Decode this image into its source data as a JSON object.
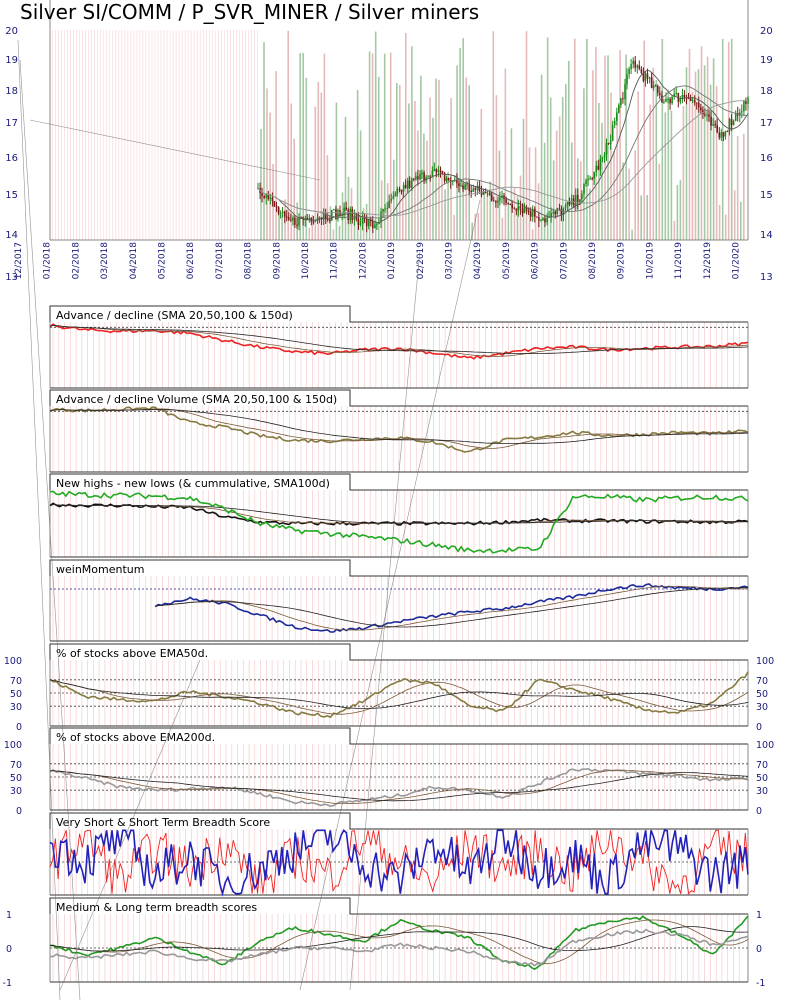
{
  "title": "Silver SI/COMM / P_SVR_MINER / Silver miners",
  "colors": {
    "price_up": "#1a8a1a",
    "price_down": "#7a1a1a",
    "ad": "#ee2222",
    "adv": "#857a40",
    "nhnl": "#22aa22",
    "momentum": "#1a2a99",
    "ema50": "#857a40",
    "ema200": "#999999",
    "vs_short": "#ee2222",
    "short": "#2222bb",
    "medium": "#229922",
    "long": "#999999",
    "axis_labels": "#1a1a7a",
    "volume_green": "#5a9a5a",
    "volume_red": "#d08080"
  },
  "chart_data": [
    {
      "type": "line",
      "panel": "price",
      "title": "Silver SI/COMM / P_SVR_MINER / Silver miners",
      "y_ticks": [
        "20",
        "19",
        "18",
        "17",
        "16",
        "15",
        "14",
        "13"
      ],
      "ylim": [
        13,
        20
      ],
      "x_ticks": [
        "12/2017",
        "01/2018",
        "02/2018",
        "03/2018",
        "04/2018",
        "05/2018",
        "06/2018",
        "07/2018",
        "08/2018",
        "09/2018",
        "10/2018",
        "11/2018",
        "12/2018",
        "01/2019",
        "02/2019",
        "03/2019",
        "04/2019",
        "05/2019",
        "06/2019",
        "07/2019",
        "08/2019",
        "09/2019",
        "10/2019",
        "11/2019",
        "12/2019",
        "01/2020"
      ],
      "price": {
        "x": [
          "08/2018",
          "09/2018",
          "10/2018",
          "11/2018",
          "12/2018",
          "01/2019",
          "02/2019",
          "03/2019",
          "04/2019",
          "05/2019",
          "06/2019",
          "07/2019",
          "08/2019",
          "09/2019",
          "10/2019",
          "11/2019",
          "12/2019",
          "01/2020"
        ],
        "values": [
          15.5,
          14.4,
          14.6,
          14.7,
          14.3,
          15.4,
          15.9,
          15.5,
          15.2,
          14.9,
          14.5,
          15.0,
          16.3,
          19.1,
          18.0,
          18.1,
          16.9,
          18.0
        ]
      }
    },
    {
      "type": "line",
      "panel": "advance_decline",
      "title": "Advance / decline (SMA 20,50,100 & 150d)",
      "series": [
        {
          "values": [
            0.95,
            0.88,
            0.86,
            0.87,
            0.83,
            0.72,
            0.62,
            0.55,
            0.52,
            0.58,
            0.6,
            0.53,
            0.45,
            0.52,
            0.6,
            0.62,
            0.58,
            0.6,
            0.62,
            0.63,
            0.68
          ]
        }
      ]
    },
    {
      "type": "line",
      "panel": "advance_decline_volume",
      "title": "Advance / decline Volume (SMA 20,50,100 & 150d)",
      "series": [
        {
          "values": [
            0.95,
            0.93,
            0.95,
            0.97,
            0.75,
            0.68,
            0.55,
            0.48,
            0.47,
            0.5,
            0.52,
            0.45,
            0.3,
            0.48,
            0.53,
            0.6,
            0.55,
            0.57,
            0.6,
            0.58,
            0.62
          ]
        }
      ]
    },
    {
      "type": "line",
      "panel": "new_highs_new_lows",
      "title": "New highs - new lows (& cummulative, SMA100d)",
      "series": [
        {
          "values": [
            0.78,
            0.77,
            0.77,
            0.75,
            0.74,
            0.6,
            0.52,
            0.5,
            0.5,
            0.5,
            0.5,
            0.5,
            0.5,
            0.52,
            0.55,
            0.54,
            0.54,
            0.53,
            0.53,
            0.52,
            0.53
          ]
        },
        {
          "values": [
            0.95,
            0.93,
            0.92,
            0.91,
            0.88,
            0.72,
            0.5,
            0.4,
            0.35,
            0.3,
            0.25,
            0.18,
            0.1,
            0.1,
            0.12,
            0.9,
            0.9,
            0.85,
            0.88,
            0.9,
            0.86
          ]
        }
      ]
    },
    {
      "type": "line",
      "panel": "weinmomentum",
      "title": "weinMomentum",
      "series": [
        {
          "values": [
            null,
            null,
            null,
            0.55,
            0.65,
            0.58,
            0.4,
            0.22,
            0.15,
            0.2,
            0.3,
            0.38,
            0.45,
            0.5,
            0.6,
            0.68,
            0.8,
            0.86,
            0.82,
            0.8,
            0.83
          ]
        }
      ]
    },
    {
      "type": "line",
      "panel": "pct_above_ema50",
      "title": "% of stocks above EMA50d.",
      "y_ticks": [
        "100",
        "70",
        "50",
        "30",
        "0"
      ],
      "ylim": [
        0,
        100
      ],
      "series": [
        {
          "values": [
            70,
            45,
            40,
            38,
            52,
            45,
            35,
            20,
            15,
            38,
            70,
            65,
            30,
            22,
            70,
            55,
            42,
            25,
            20,
            35,
            80
          ]
        }
      ]
    },
    {
      "type": "line",
      "panel": "pct_above_ema200",
      "title": "% of stocks above EMA200d.",
      "y_ticks": [
        "100",
        "70",
        "50",
        "30",
        "0"
      ],
      "ylim": [
        0,
        100
      ],
      "series": [
        {
          "values": [
            60,
            48,
            35,
            30,
            32,
            35,
            25,
            12,
            8,
            15,
            22,
            35,
            30,
            20,
            40,
            62,
            60,
            55,
            52,
            45,
            48
          ]
        }
      ]
    },
    {
      "type": "line",
      "panel": "very_short_short_breadth",
      "title": "Very Short & Short Term Breadth Score",
      "series": [
        {
          "values": [
            0.5,
            0.9,
            0.2,
            0.7,
            0.4,
            0.8,
            0.1,
            0.6,
            0.3,
            0.9,
            0.5,
            0.2,
            0.8,
            0.4,
            0.7,
            0.3,
            0.9,
            0.5,
            0.1,
            0.7,
            0.6
          ]
        },
        {
          "values": [
            0.8,
            0.5,
            0.9,
            0.3,
            0.6,
            0.2,
            0.4,
            0.7,
            0.9,
            0.5,
            0.2,
            0.8,
            0.3,
            0.9,
            0.4,
            0.6,
            0.2,
            0.8,
            0.7,
            0.3,
            0.5
          ]
        }
      ]
    },
    {
      "type": "line",
      "panel": "medium_long_breadth",
      "title": "Medium & Long term breadth scores",
      "y_ticks": [
        "1",
        "0",
        "-1"
      ],
      "ylim": [
        -1,
        1
      ],
      "series": [
        {
          "values": [
            0.1,
            -0.2,
            0.0,
            0.3,
            -0.1,
            -0.5,
            0.2,
            0.6,
            0.4,
            0.2,
            0.8,
            0.5,
            0.3,
            -0.4,
            -0.6,
            0.5,
            0.8,
            0.9,
            0.4,
            -0.2,
            0.9
          ]
        },
        {
          "values": [
            -0.2,
            -0.3,
            -0.2,
            -0.1,
            -0.3,
            -0.4,
            -0.2,
            0.0,
            0.0,
            -0.1,
            0.1,
            0.0,
            -0.1,
            -0.4,
            -0.5,
            0.2,
            0.4,
            0.5,
            0.4,
            0.1,
            0.3
          ]
        }
      ]
    }
  ]
}
